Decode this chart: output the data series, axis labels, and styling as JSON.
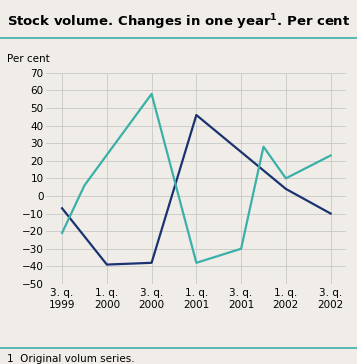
{
  "title": "Stock volume. Changes in one year$^{\\mathbf{1}}$. Per cent",
  "ylabel": "Per cent",
  "footnote": "1  Original volum series.",
  "ylim": [
    -50,
    70
  ],
  "yticks": [
    -50,
    -40,
    -30,
    -20,
    -10,
    0,
    10,
    20,
    30,
    40,
    50,
    60,
    70
  ],
  "xtick_positions": [
    0,
    1,
    2,
    3,
    4,
    5,
    6
  ],
  "x_labels": [
    "3. q.\n1999",
    "1. q.\n2000",
    "3. q.\n2000",
    "1. q.\n2001",
    "3. q.\n2001",
    "1. q.\n2002",
    "3. q.\n2002"
  ],
  "x_finished": [
    0,
    1,
    2,
    3,
    4,
    5,
    6
  ],
  "y_finished": [
    -7,
    -39,
    -38,
    46,
    25,
    4,
    -10
  ],
  "x_unfinished": [
    0,
    0.5,
    2,
    3,
    4,
    4.5,
    5,
    6
  ],
  "y_unfinished": [
    -21,
    6,
    58,
    -38,
    -30,
    28,
    10,
    23
  ],
  "finished_color": "#1a3370",
  "unfinished_color": "#3ab0a8",
  "background_color": "#f0ede8",
  "plot_bg_color": "#f0ede8",
  "grid_color": "#c8c8c8",
  "teal_line_color": "#3ab0a8",
  "line_width": 1.6
}
